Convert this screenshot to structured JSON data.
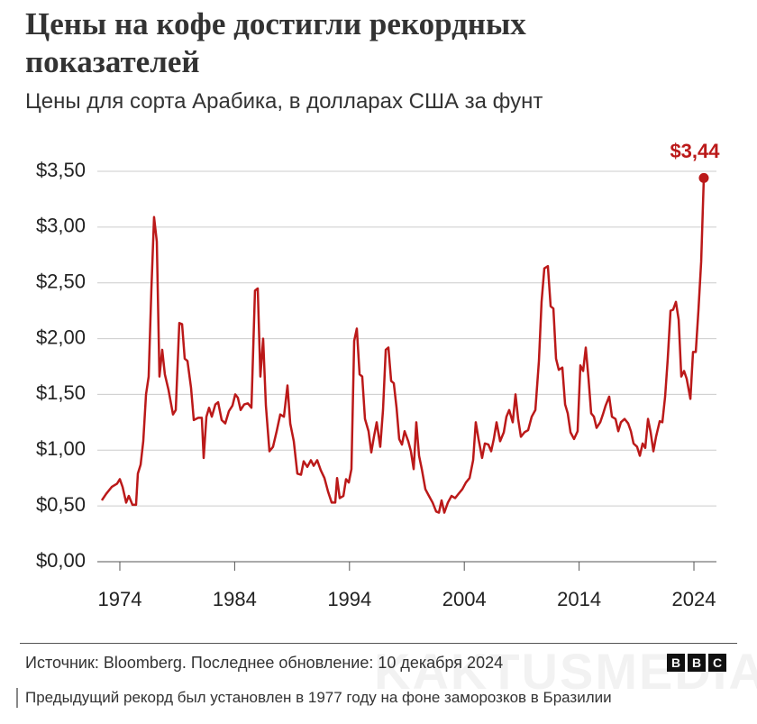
{
  "chart_data": {
    "type": "line",
    "title": "Цены на кофе достигли рекордных показателей",
    "subtitle": "Цены для сорта Арабика, в долларах США за фунт",
    "source": "Источник: Bloomberg. Последнее обновление: 10 декабря 2024",
    "logo": [
      "B",
      "B",
      "C"
    ],
    "caption": "Предыдущий рекорд был установлен в 1977 году на фоне заморозков в Бразилии",
    "watermark": "KAKTUSMEDIA",
    "color": "#bb1919",
    "x": [
      1972.43,
      1972.82,
      1973.29,
      1973.76,
      1974,
      1974.24,
      1974.55,
      1974.78,
      1975.1,
      1975.41,
      1975.57,
      1975.81,
      1976.04,
      1976.28,
      1976.51,
      1976.75,
      1976.98,
      1977.22,
      1977.45,
      1977.69,
      1977.92,
      1978.24,
      1978.63,
      1978.87,
      1979.18,
      1979.42,
      1979.65,
      1979.89,
      1980.2,
      1980.44,
      1980.83,
      1981.14,
      1981.3,
      1981.54,
      1981.77,
      1982.01,
      1982.32,
      1982.56,
      1982.87,
      1983.18,
      1983.5,
      1983.81,
      1984.05,
      1984.28,
      1984.52,
      1984.83,
      1985.15,
      1985.46,
      1985.77,
      1986.01,
      1986.24,
      1986.48,
      1986.72,
      1987.03,
      1987.34,
      1987.66,
      1987.97,
      1988.29,
      1988.6,
      1988.84,
      1989.15,
      1989.46,
      1989.78,
      1990.01,
      1990.33,
      1990.64,
      1990.88,
      1991.19,
      1991.5,
      1991.82,
      1992.13,
      1992.45,
      1992.76,
      1992.92,
      1993.15,
      1993.47,
      1993.7,
      1993.94,
      1994.17,
      1994.41,
      1994.64,
      1994.88,
      1995.11,
      1995.35,
      1995.66,
      1995.9,
      1996.13,
      1996.37,
      1996.68,
      1996.92,
      1997.16,
      1997.39,
      1997.63,
      1997.86,
      1998.1,
      1998.33,
      1998.57,
      1998.8,
      1999.12,
      1999.35,
      1999.59,
      1999.82,
      2000.06,
      2000.3,
      2000.61,
      2000.92,
      2001.24,
      2001.55,
      2001.79,
      2002.02,
      2002.26,
      2002.57,
      2002.89,
      2003.2,
      2003.51,
      2003.83,
      2004.14,
      2004.46,
      2004.77,
      2005,
      2005.24,
      2005.55,
      2005.79,
      2006.1,
      2006.34,
      2006.57,
      2006.81,
      2007.12,
      2007.44,
      2007.67,
      2007.91,
      2008.22,
      2008.46,
      2008.69,
      2008.93,
      2009.24,
      2009.56,
      2009.87,
      2010.19,
      2010.5,
      2010.73,
      2010.97,
      2011.28,
      2011.52,
      2011.76,
      2011.99,
      2012.23,
      2012.54,
      2012.78,
      2013.01,
      2013.25,
      2013.56,
      2013.87,
      2014.11,
      2014.35,
      2014.58,
      2014.82,
      2015.05,
      2015.29,
      2015.52,
      2015.84,
      2016.07,
      2016.31,
      2016.62,
      2016.86,
      2017.17,
      2017.41,
      2017.64,
      2017.96,
      2018.27,
      2018.51,
      2018.74,
      2019.05,
      2019.29,
      2019.53,
      2019.76,
      2020,
      2020.23,
      2020.47,
      2020.7,
      2021.02,
      2021.25,
      2021.49,
      2021.72,
      2021.96,
      2022.19,
      2022.43,
      2022.67,
      2022.9,
      2023.14,
      2023.37,
      2023.69,
      2023.92,
      2024.16,
      2024.39,
      2024.63,
      2024.86
    ],
    "values": [
      0.55,
      0.61,
      0.67,
      0.7,
      0.74,
      0.67,
      0.53,
      0.59,
      0.51,
      0.51,
      0.79,
      0.87,
      1.08,
      1.5,
      1.66,
      2.45,
      3.09,
      2.87,
      1.66,
      1.9,
      1.68,
      1.54,
      1.32,
      1.36,
      2.14,
      2.13,
      1.82,
      1.8,
      1.56,
      1.27,
      1.29,
      1.29,
      0.93,
      1.3,
      1.38,
      1.3,
      1.41,
      1.43,
      1.27,
      1.24,
      1.35,
      1.4,
      1.5,
      1.47,
      1.36,
      1.41,
      1.42,
      1.38,
      2.43,
      2.45,
      1.66,
      2.0,
      1.4,
      0.99,
      1.03,
      1.17,
      1.32,
      1.3,
      1.58,
      1.24,
      1.08,
      0.79,
      0.78,
      0.9,
      0.85,
      0.91,
      0.86,
      0.91,
      0.82,
      0.75,
      0.63,
      0.53,
      0.53,
      0.75,
      0.57,
      0.59,
      0.74,
      0.71,
      0.83,
      1.98,
      2.09,
      1.68,
      1.66,
      1.28,
      1.17,
      0.98,
      1.12,
      1.25,
      1.03,
      1.36,
      1.9,
      1.92,
      1.62,
      1.6,
      1.38,
      1.1,
      1.05,
      1.17,
      1.08,
      0.99,
      0.83,
      1.25,
      0.95,
      0.83,
      0.65,
      0.59,
      0.53,
      0.45,
      0.44,
      0.55,
      0.44,
      0.53,
      0.59,
      0.57,
      0.61,
      0.65,
      0.71,
      0.75,
      0.91,
      1.25,
      1.1,
      0.93,
      1.06,
      1.05,
      0.99,
      1.1,
      1.25,
      1.08,
      1.16,
      1.3,
      1.36,
      1.25,
      1.5,
      1.28,
      1.12,
      1.16,
      1.18,
      1.3,
      1.36,
      1.8,
      2.33,
      2.63,
      2.65,
      2.29,
      2.27,
      1.82,
      1.72,
      1.74,
      1.41,
      1.33,
      1.16,
      1.1,
      1.17,
      1.76,
      1.71,
      1.92,
      1.64,
      1.33,
      1.3,
      1.2,
      1.25,
      1.32,
      1.4,
      1.48,
      1.3,
      1.28,
      1.17,
      1.25,
      1.28,
      1.24,
      1.17,
      1.06,
      1.03,
      0.95,
      1.06,
      1.02,
      1.28,
      1.16,
      0.99,
      1.12,
      1.26,
      1.25,
      1.48,
      1.82,
      2.25,
      2.26,
      2.33,
      2.17,
      1.66,
      1.71,
      1.64,
      1.46,
      1.88,
      1.88,
      2.25,
      2.69,
      3.44
    ],
    "value_labels": [
      null,
      null,
      null,
      null,
      null,
      null,
      null,
      null,
      null,
      null,
      null,
      null,
      null,
      null,
      null,
      null,
      null,
      null,
      null,
      null,
      null,
      null,
      null,
      null,
      null,
      null,
      null,
      null,
      null,
      null,
      null,
      null,
      null,
      null,
      null,
      null,
      null,
      null,
      null,
      null,
      null,
      null,
      null,
      null,
      null,
      null,
      null,
      null,
      null,
      null,
      null,
      null,
      null,
      null,
      null,
      null,
      null,
      null,
      null,
      null,
      null,
      null,
      null,
      null,
      null,
      null,
      null,
      null,
      null,
      null,
      null,
      null,
      null,
      null,
      null,
      null,
      null,
      null,
      null,
      null,
      null,
      null,
      null,
      null,
      null,
      null,
      null,
      null,
      null,
      null,
      null,
      null,
      null,
      null,
      null,
      null,
      null,
      null,
      null,
      null,
      null,
      null,
      null,
      null,
      null,
      null,
      null,
      null,
      null,
      null,
      null,
      null,
      null,
      null,
      null,
      null,
      null,
      null,
      null,
      null,
      null,
      null,
      null,
      null,
      null,
      null,
      null,
      null,
      null,
      null,
      null,
      null,
      null,
      null,
      null,
      null,
      null,
      null,
      null,
      null,
      null,
      null,
      null,
      null,
      null,
      null,
      null,
      null,
      null,
      null,
      null,
      null,
      null,
      null,
      null,
      null,
      null,
      null,
      null,
      null,
      null,
      null,
      null,
      null,
      null,
      null,
      null,
      null,
      null,
      null,
      null,
      null,
      null,
      null,
      null,
      null,
      null,
      null,
      null,
      null,
      null,
      null,
      null,
      null,
      null,
      null,
      null,
      null,
      null,
      null,
      null,
      null,
      null,
      null,
      null,
      null,
      "$3,44"
    ],
    "xlim": [
      1972,
      2026
    ],
    "xticks": [
      1974,
      1984,
      1994,
      2004,
      2014,
      2024
    ],
    "ylim": [
      0,
      3.5
    ],
    "yticks": [
      {
        "value": 0,
        "label": "$0,00"
      },
      {
        "value": 0.5,
        "label": "$0,50"
      },
      {
        "value": 1,
        "label": "$1,00"
      },
      {
        "value": 1.5,
        "label": "$1,50"
      },
      {
        "value": 2,
        "label": "$2,00"
      },
      {
        "value": 2.5,
        "label": "$2,50"
      },
      {
        "value": 3,
        "label": "$3,00"
      },
      {
        "value": 3.5,
        "label": "$3,50"
      }
    ],
    "grid": true
  }
}
